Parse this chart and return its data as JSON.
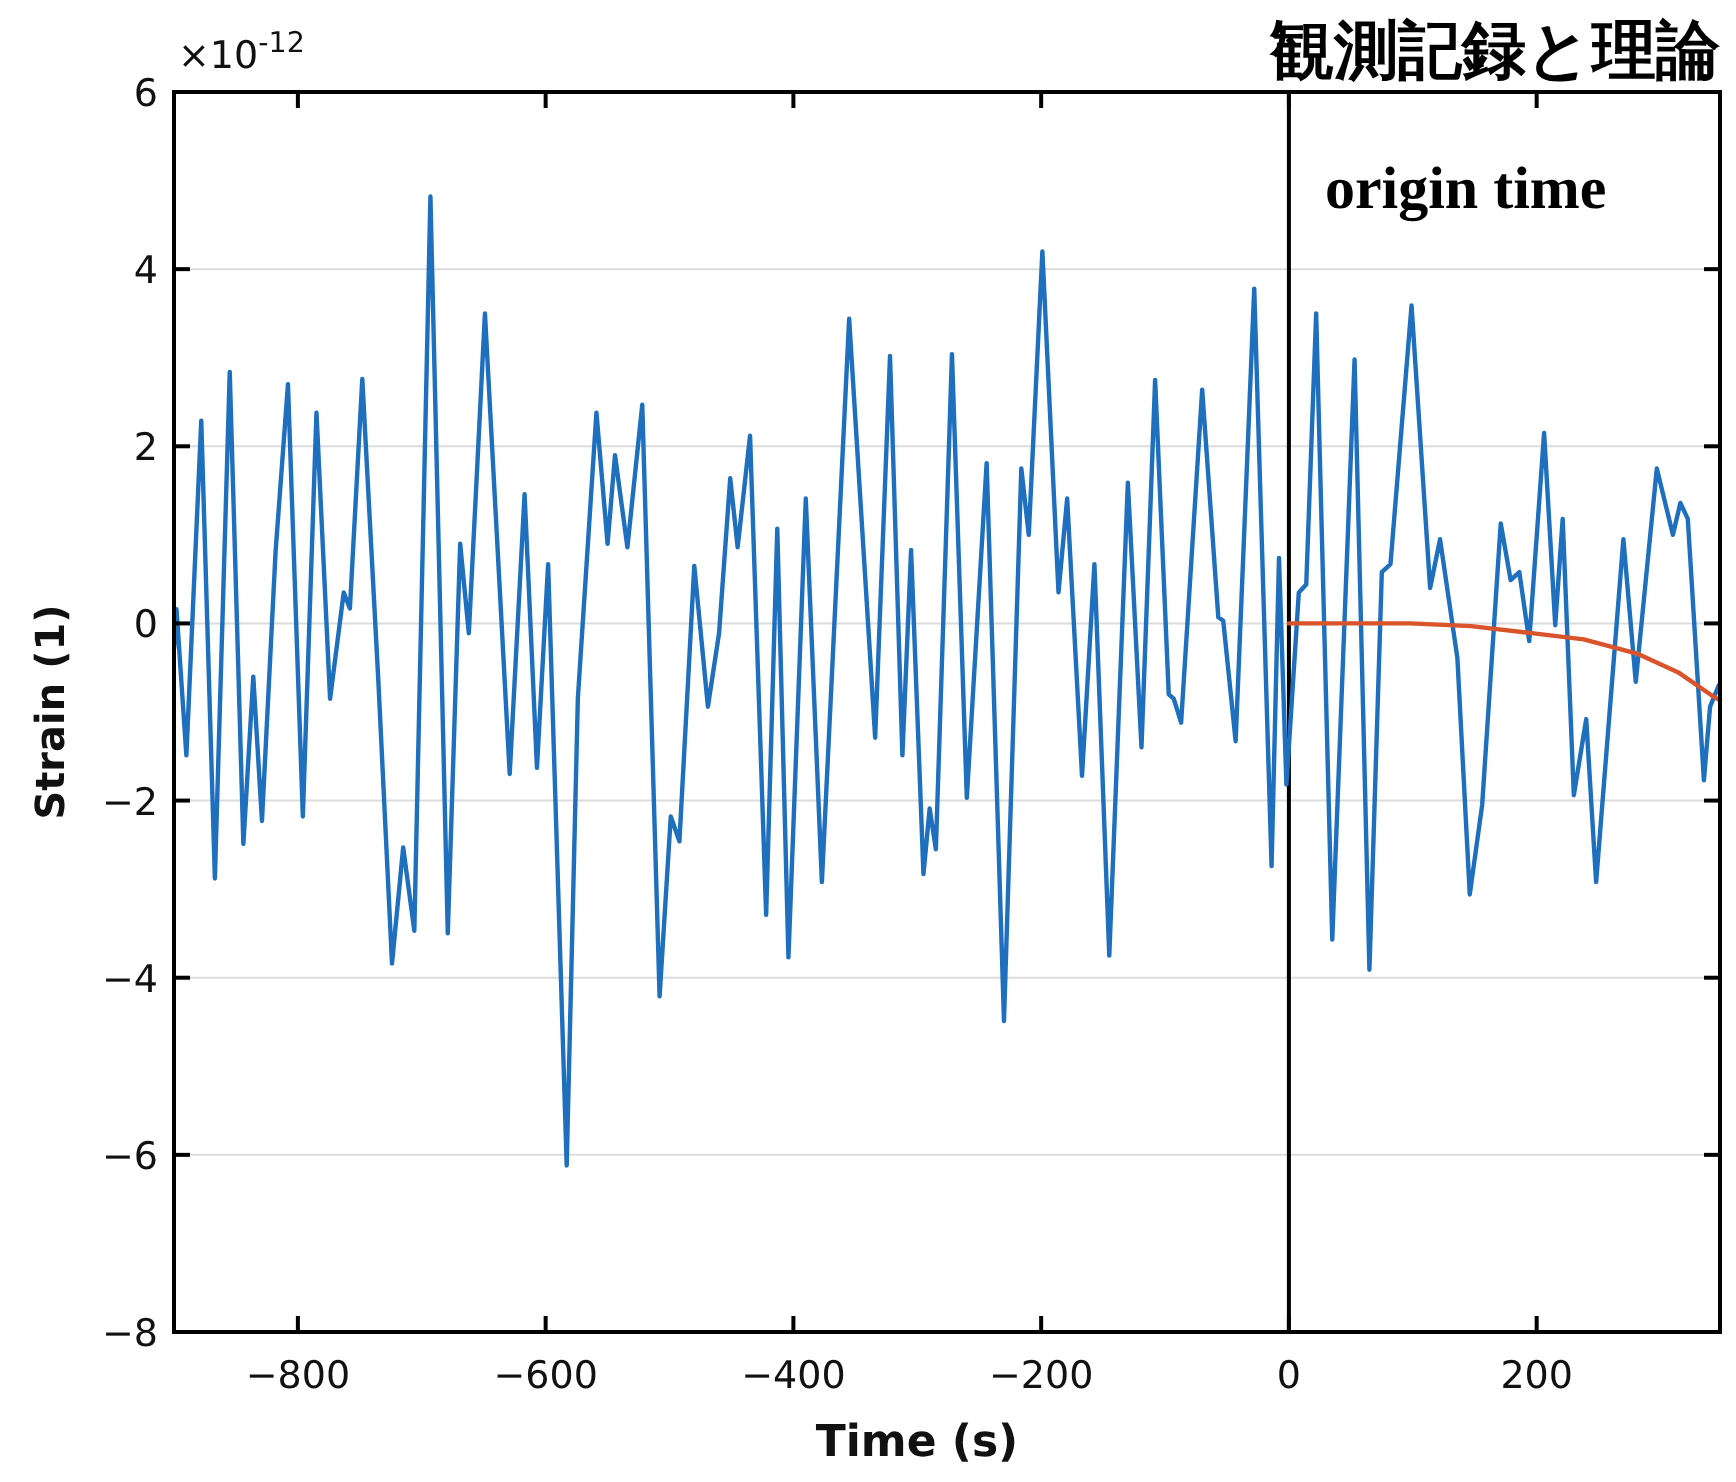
{
  "chart_data": {
    "type": "line",
    "title": "観測記録と理論",
    "xlabel": "Time (s)",
    "ylabel": "Strain (1)",
    "annotations": [
      "×10$^{-12}$"
    ],
    "xlim": [
      -900,
      348
    ],
    "ylim": [
      -8,
      6
    ],
    "xticks": [
      -800,
      -600,
      -400,
      -200,
      0,
      200
    ],
    "yticks": [
      -8,
      -6,
      -4,
      -2,
      0,
      2,
      4,
      6
    ],
    "grid": "y",
    "ref_lines": [
      {
        "axis": "x",
        "value": 0,
        "label": "origin time",
        "color": "#000000"
      }
    ],
    "series": [
      {
        "color": "#1f6fbf",
        "x": [
          -900,
          -898,
          -890,
          -878,
          -867,
          -855,
          -844,
          -836,
          -829,
          -818,
          -808,
          -796,
          -785,
          -774,
          -763,
          -758,
          -748,
          -735,
          -724,
          -715,
          -706,
          -693,
          -679,
          -669,
          -662,
          -649,
          -629,
          -617,
          -607,
          -598,
          -583,
          -574,
          -559,
          -550,
          -544,
          -534,
          -522,
          -508,
          -499,
          -492,
          -480,
          -469,
          -460,
          -451,
          -445,
          -435,
          -422,
          -413,
          -404,
          -390,
          -377,
          -355,
          -334,
          -322,
          -312,
          -305,
          -295,
          -290,
          -285,
          -272,
          -260,
          -244,
          -230,
          -216,
          -210,
          -199,
          -186,
          -179,
          -167,
          -157,
          -145,
          -130,
          -119,
          -108,
          -97,
          -93,
          -87,
          -70,
          -57,
          -53,
          -43,
          -28,
          -14,
          -8,
          -2,
          8,
          14,
          22,
          35,
          53,
          65,
          75,
          82,
          99,
          114,
          122,
          136,
          146,
          156,
          171,
          179,
          186,
          194,
          206,
          215,
          221,
          230,
          240,
          248,
          270,
          280,
          297,
          310,
          316,
          322,
          335,
          340,
          347
        ],
        "values": [
          -0.29,
          0.16,
          -1.49,
          2.29,
          -2.88,
          2.84,
          -2.49,
          -0.6,
          -2.23,
          0.81,
          2.7,
          -2.18,
          2.38,
          -0.85,
          0.35,
          0.17,
          2.76,
          -0.66,
          -3.84,
          -2.53,
          -3.47,
          4.82,
          -3.5,
          0.9,
          -0.11,
          3.5,
          -1.7,
          1.46,
          -1.63,
          0.67,
          -6.12,
          -0.85,
          2.38,
          0.9,
          1.9,
          0.86,
          2.47,
          -4.21,
          -2.18,
          -2.46,
          0.65,
          -0.94,
          -0.11,
          1.64,
          0.86,
          2.12,
          -3.29,
          1.07,
          -3.77,
          1.41,
          -2.92,
          3.44,
          -1.29,
          3.02,
          -1.49,
          0.83,
          -2.83,
          -2.09,
          -2.55,
          3.04,
          -1.97,
          1.81,
          -4.49,
          1.75,
          1.0,
          4.2,
          0.35,
          1.41,
          -1.72,
          0.67,
          -3.75,
          1.59,
          -1.4,
          2.75,
          -0.8,
          -0.85,
          -1.12,
          2.64,
          0.07,
          0.03,
          -1.33,
          3.78,
          -2.74,
          0.74,
          -1.82,
          0.35,
          0.44,
          3.5,
          -3.57,
          2.98,
          -3.91,
          0.58,
          0.67,
          3.59,
          0.4,
          0.95,
          -0.39,
          -3.06,
          -2.05,
          1.13,
          0.49,
          0.58,
          -0.2,
          2.15,
          -0.02,
          1.18,
          -1.94,
          -1.08,
          -2.92,
          0.95,
          -0.66,
          1.75,
          1.0,
          1.36,
          1.18,
          -1.77,
          -0.94,
          -0.7
        ]
      },
      {
        "color": "#d9532b",
        "x": [
          0,
          98,
          147,
          196,
          238,
          281,
          314,
          340,
          348
        ],
        "values": [
          0,
          0,
          -0.03,
          -0.11,
          -0.18,
          -0.34,
          -0.55,
          -0.8,
          -0.87
        ]
      }
    ]
  }
}
